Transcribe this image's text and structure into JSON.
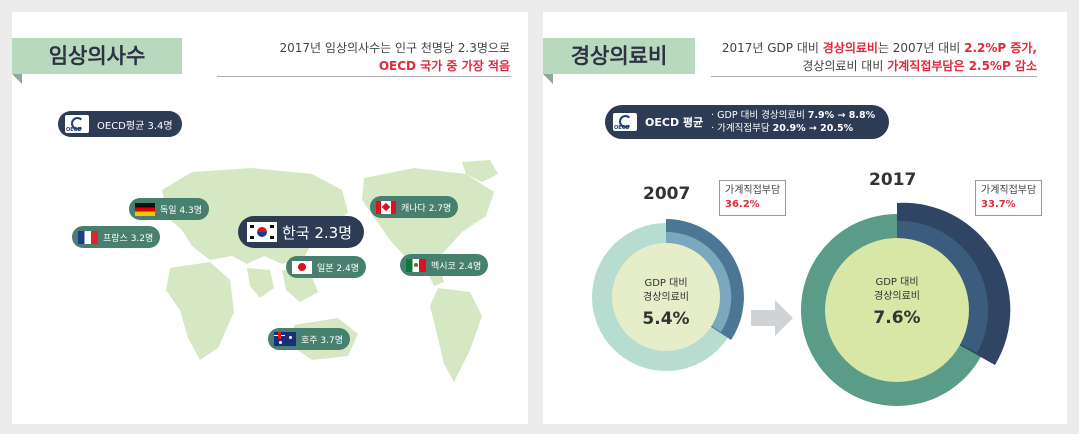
{
  "left": {
    "tab_title": "임상의사수",
    "head_line1": "2017년 임상의사수는 인구 천명당 2.3명으로",
    "head_line2": "OECD 국가 중 가장 적음",
    "oecd_pill": "OECD평균 3.4명",
    "countries": [
      {
        "label": "독일 4.3명",
        "flag": "germany-flag-icon"
      },
      {
        "label": "프랑스 3.2명",
        "flag": "france-flag-icon"
      },
      {
        "label": "한국 2.3명",
        "flag": "korea-flag-icon"
      },
      {
        "label": "일본 2.4명",
        "flag": "japan-flag-icon"
      },
      {
        "label": "캐나다 2.7명",
        "flag": "canada-flag-icon"
      },
      {
        "label": "멕시코 2.4명",
        "flag": "mexico-flag-icon"
      },
      {
        "label": "호주 3.7명",
        "flag": "australia-flag-icon"
      }
    ]
  },
  "right": {
    "tab_title": "경상의료비",
    "head_line1_a": "2017년 GDP 대비 ",
    "head_line1_b": "경상의료비",
    "head_line1_c": "는 2007년 대비 ",
    "head_line1_d": "2.2%P 증가,",
    "head_line2_a": "경상의료비 대비 ",
    "head_line2_b": "가계직접부담은 2.5%P 감소",
    "oecd_pill": "OECD 평균",
    "oecd_line1_a": "· GDP 대비 경상의료비 ",
    "oecd_line1_b": "7.9% → 8.8%",
    "oecd_line2_a": "· 가계직접부담 ",
    "oecd_line2_b": "20.9% → 20.5%",
    "donuts": [
      {
        "year": "2007",
        "center_label_1": "GDP 대비",
        "center_label_2": "경상의료비",
        "value": "5.4%",
        "callout_label": "가계직접부담",
        "callout_value": "36.2%"
      },
      {
        "year": "2017",
        "center_label_1": "GDP 대비",
        "center_label_2": "경상의료비",
        "value": "7.6%",
        "callout_label": "가계직접부담",
        "callout_value": "33.7%"
      }
    ]
  },
  "colors": {
    "navy": "#2e3b55",
    "green_tab": "#b9d9bf",
    "teal": "#47806f",
    "red": "#e02a3a"
  }
}
